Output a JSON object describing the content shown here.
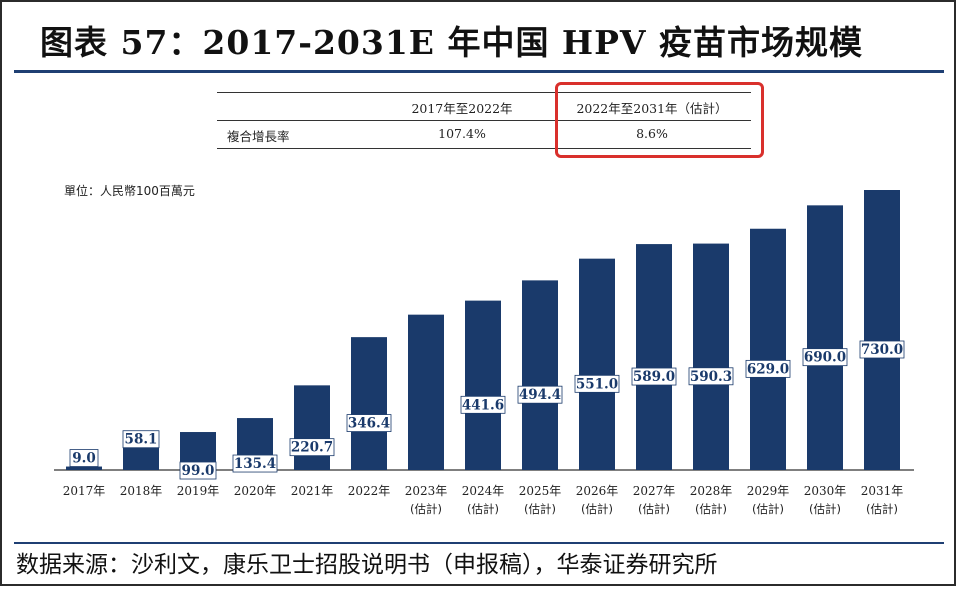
{
  "title": "图表 57：2017-2031E 年中国 HPV 疫苗市场规模",
  "cagr_table": {
    "header": [
      "",
      "2017年至2022年",
      "2022年至2031年（估計）"
    ],
    "row_label": "複合增長率",
    "row_values": [
      "107.4%",
      "8.6%"
    ]
  },
  "colors": {
    "bar": "#1a3a6b",
    "accent_box": "#d9302c",
    "rule": "#1f3f73"
  },
  "source": "数据来源：沙利文，康乐卫士招股说明书（申报稿），华泰证券研究所",
  "chart_data": {
    "type": "bar",
    "ylabel": "單位：人民幣100百萬元",
    "categories": [
      "2017年",
      "2018年",
      "2019年",
      "2020年",
      "2021年",
      "2022年",
      "2023年",
      "2024年",
      "2025年",
      "2026年",
      "2027年",
      "2028年",
      "2029年",
      "2030年",
      "2031年"
    ],
    "sublabels": [
      "",
      "",
      "",
      "",
      "",
      "",
      "(估計)",
      "(估計)",
      "(估計)",
      "(估計)",
      "(估計)",
      "(估計)",
      "(估計)",
      "(估計)",
      "(估計)"
    ],
    "values": [
      9.0,
      58.1,
      99.0,
      135.4,
      220.7,
      346.4,
      405.0,
      441.6,
      494.4,
      551.0,
      589.0,
      590.3,
      629.0,
      690.0,
      730.0
    ],
    "value_labels": [
      "9.0",
      "58.1",
      "99.0",
      "135.4",
      "220.7",
      "346.4",
      "",
      "441.6",
      "494.4",
      "551.0",
      "589.0",
      "590.3",
      "629.0",
      "690.0",
      "730.0"
    ],
    "ylim": [
      0,
      730
    ],
    "grid": false,
    "legend": "none"
  }
}
